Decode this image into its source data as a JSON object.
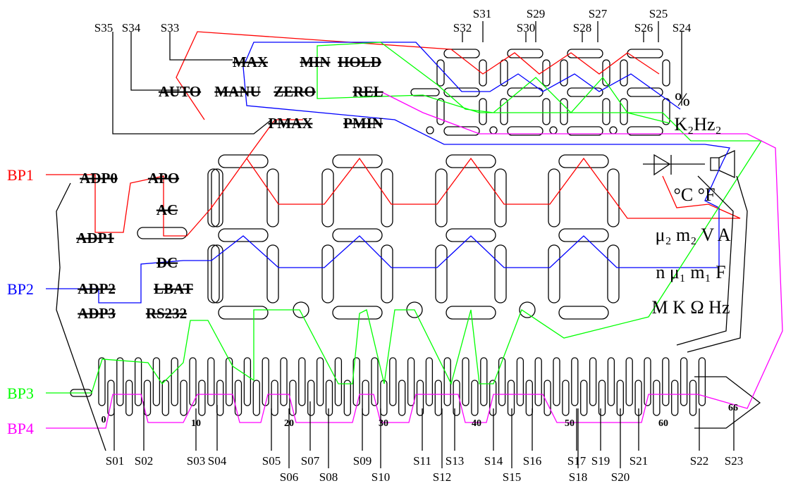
{
  "backplanes": [
    {
      "label": "BP1",
      "color": "#ff0000"
    },
    {
      "label": "BP2",
      "color": "#0000ff"
    },
    {
      "label": "BP3",
      "color": "#00ff00"
    },
    {
      "label": "BP4",
      "color": "#ff00ff"
    }
  ],
  "top_pins": [
    "S35",
    "S34",
    "S33",
    "S32",
    "S31",
    "S30",
    "S29",
    "S28",
    "S27",
    "S26",
    "S25",
    "S24"
  ],
  "bottom_pins": [
    "S01",
    "S02",
    "S03",
    "S04",
    "S05",
    "S06",
    "S07",
    "S08",
    "S09",
    "S10",
    "S11",
    "S12",
    "S13",
    "S14",
    "S15",
    "S16",
    "S17",
    "S18",
    "S19",
    "S20",
    "S21",
    "S22",
    "S23"
  ],
  "pin_numbers": [
    "0",
    "10",
    "20",
    "30",
    "40",
    "50",
    "60",
    "66"
  ],
  "annunciators": [
    "MAX",
    "MIN",
    "HOLD",
    "AUTO",
    "MANU",
    "ZERO",
    "REL",
    "PMAX",
    "PMIN",
    "ADP0",
    "APO",
    "AC",
    "ADP1",
    "DC",
    "ADP2",
    "LBAT",
    "ADP3",
    "RS232"
  ],
  "units": [
    "%",
    "K₂Hz₂",
    "°C  °F",
    "μ₂ m₂ V A",
    "n μ₁ m₁ F",
    "M K Ω Hz"
  ]
}
